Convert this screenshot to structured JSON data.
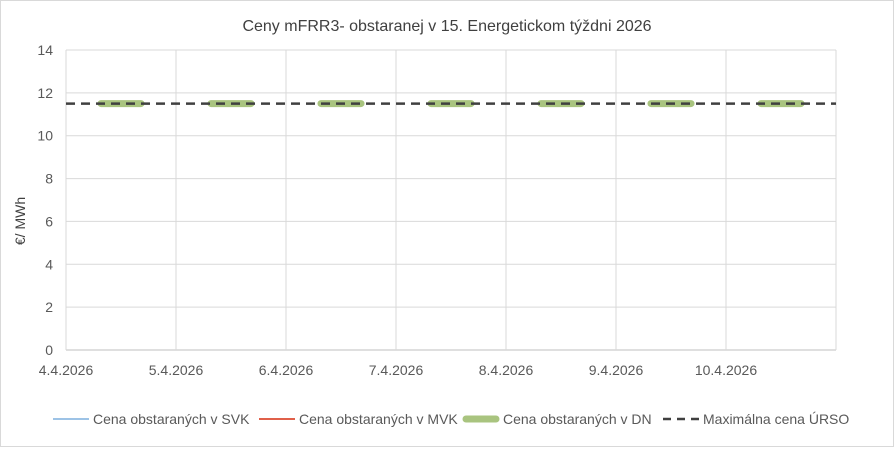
{
  "chart_data": {
    "type": "line",
    "title": "Ceny mFRR3- obstaranej v 15. Energetickom týždni 2026",
    "ylabel": "€/ MWh",
    "xlabel": "",
    "ylim": [
      0,
      14
    ],
    "y_ticks": [
      "0",
      "2",
      "4",
      "6",
      "8",
      "10",
      "12",
      "14"
    ],
    "x_ticks": [
      "4.4.2026",
      "5.4.2026",
      "6.4.2026",
      "7.4.2026",
      "8.4.2026",
      "9.4.2026",
      "10.4.2026"
    ],
    "grid": true,
    "legend_position": "bottom",
    "series": [
      {
        "name": "Cena obstaraných v SVK",
        "color": "#9dc3e6",
        "style": "solid",
        "segments": []
      },
      {
        "name": "Cena obstaraných v MVK",
        "color": "#e0604a",
        "style": "solid",
        "segments": []
      },
      {
        "name": "Cena obstaraných v DN",
        "color": "#a9c47f",
        "style": "thick",
        "segments": [
          {
            "day": 0,
            "value": 11.5
          },
          {
            "day": 1,
            "value": 11.5
          },
          {
            "day": 2,
            "value": 11.5
          },
          {
            "day": 3,
            "value": 11.5
          },
          {
            "day": 4,
            "value": 11.5
          },
          {
            "day": 5,
            "value": 11.5
          },
          {
            "day": 6,
            "value": 11.5
          }
        ]
      },
      {
        "name": "Maximálna cena ÚRSO",
        "color": "#404040",
        "style": "dashed",
        "value": 11.5
      }
    ]
  }
}
